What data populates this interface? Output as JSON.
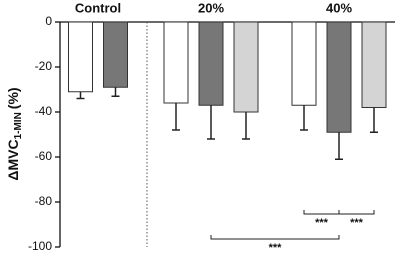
{
  "chart_data": {
    "type": "bar",
    "y_label": "ΔMVC",
    "y_label_sub": "1-MIN",
    "y_label_unit": "(%)",
    "categories": [
      "Control",
      "20%",
      "40%"
    ],
    "series": [
      {
        "color": "#ffffff",
        "values": [
          -31,
          -36,
          -37
        ],
        "errors": [
          3,
          12,
          11
        ]
      },
      {
        "color": "#777777",
        "values": [
          -29,
          -37,
          -49
        ],
        "errors": [
          4,
          15,
          12
        ]
      },
      {
        "color": "#d4d4d4",
        "values": [
          null,
          -40,
          -38
        ],
        "errors": [
          null,
          12,
          11
        ]
      }
    ],
    "ylim": [
      -100,
      0
    ],
    "yticks": [
      0,
      -20,
      -40,
      -60,
      -80,
      -100
    ],
    "significance": [
      "***",
      "***",
      "***"
    ]
  }
}
